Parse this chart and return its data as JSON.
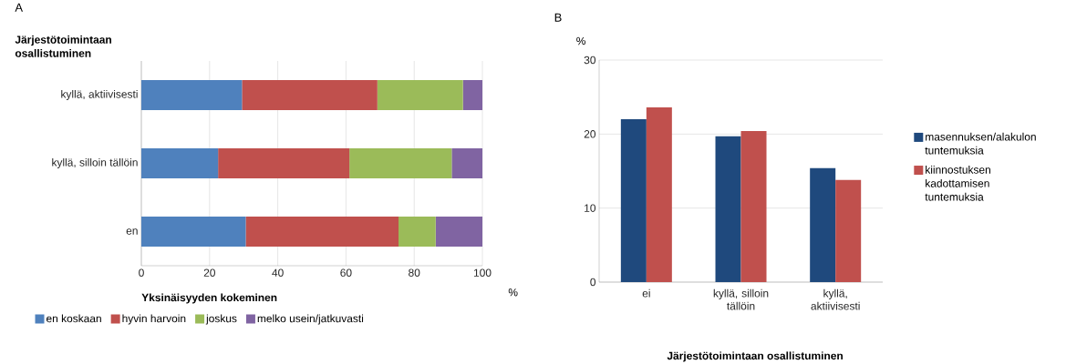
{
  "chart_data": [
    {
      "type": "bar",
      "title": "A",
      "ylabel": "Järjestötoimintaan osallistuminen",
      "xlabel": "%",
      "legend_title": "Yksinäisyyden kokeminen",
      "orientation": "horizontal",
      "stacked": true,
      "categories": [
        "kyllä, aktiivisesti",
        "kyllä, silloin tällöin",
        "en"
      ],
      "series": [
        {
          "name": "en koskaan",
          "color": "#4f81bd",
          "values": [
            29.5,
            22.5,
            30.6
          ]
        },
        {
          "name": "hyvin harvoin",
          "color": "#c0504d",
          "values": [
            39.7,
            38.5,
            44.8
          ]
        },
        {
          "name": "joskus",
          "color": "#9bbb59",
          "values": [
            25.1,
            30,
            10.9
          ]
        },
        {
          "name": "melko usein/jatkuvasti",
          "color": "#8064a2",
          "values": [
            5.7,
            9,
            13.7
          ]
        }
      ],
      "xlim": [
        0,
        100
      ],
      "xticks": [
        0,
        20,
        40,
        60,
        80,
        100
      ],
      "grid": "x",
      "legend": "bottom"
    },
    {
      "type": "bar",
      "title": "B",
      "ylabel": "%",
      "xlabel": "Järjestötoimintaan osallistuminen",
      "categories": [
        "ei",
        "kyllä, silloin tällöin",
        "kyllä, aktiivisesti"
      ],
      "series": [
        {
          "name": "masennuksen/alakulon tuntemuksia",
          "color": "#1f497d",
          "values": [
            22,
            19.7,
            15.4
          ]
        },
        {
          "name": "kiinnostuksen kadottamisen tuntemuksia",
          "color": "#c0504d",
          "values": [
            23.6,
            20.4,
            13.8
          ]
        }
      ],
      "ylim": [
        0,
        30
      ],
      "yticks": [
        0,
        10,
        20,
        30
      ],
      "grid": "y",
      "legend": "right"
    }
  ]
}
